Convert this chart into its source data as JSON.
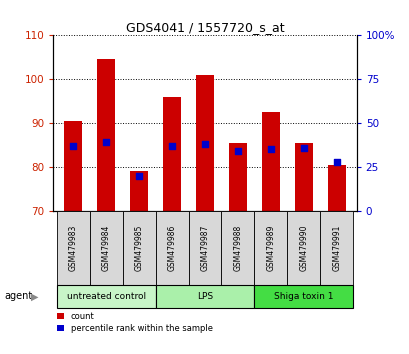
{
  "title": "GDS4041 / 1557720_s_at",
  "samples": [
    "GSM479983",
    "GSM479984",
    "GSM479985",
    "GSM479986",
    "GSM479987",
    "GSM479988",
    "GSM479989",
    "GSM479990",
    "GSM479991"
  ],
  "counts": [
    90.5,
    104.5,
    79.0,
    96.0,
    101.0,
    85.5,
    92.5,
    85.5,
    80.5
  ],
  "percentile_ranks": [
    37,
    39,
    20,
    37,
    38,
    34,
    35,
    36,
    28
  ],
  "ylim_left": [
    70,
    110
  ],
  "ylim_right": [
    0,
    100
  ],
  "yticks_left": [
    70,
    80,
    90,
    100,
    110
  ],
  "yticks_right": [
    0,
    25,
    50,
    75,
    100
  ],
  "bar_color": "#cc0000",
  "dot_color": "#0000cc",
  "bar_bottom": 70,
  "group_colors": [
    "#c8f5c8",
    "#aaf0aa",
    "#44dd44"
  ],
  "group_labels": [
    "untreated control",
    "LPS",
    "Shiga toxin 1"
  ],
  "group_starts": [
    0,
    3,
    6
  ],
  "group_ends": [
    3,
    6,
    9
  ],
  "left_tick_color": "#cc2200",
  "right_tick_color": "#0000cc",
  "sample_box_color": "#d8d8d8",
  "agent_label": "agent"
}
